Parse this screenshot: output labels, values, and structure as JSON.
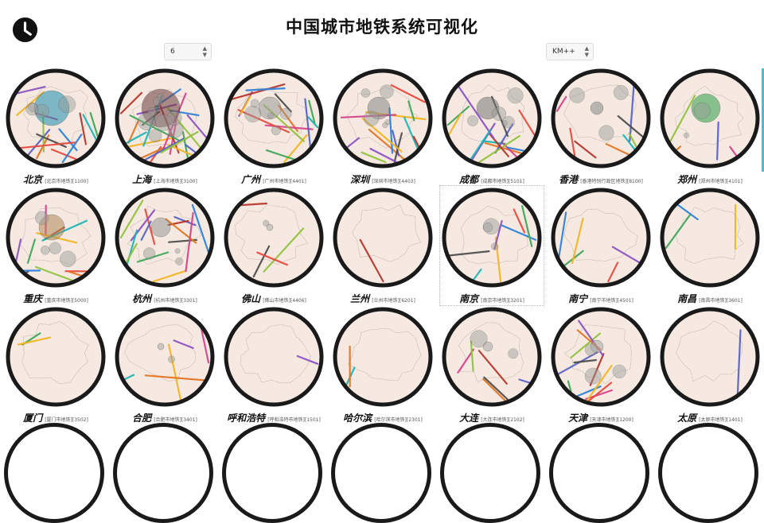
{
  "header": {
    "title": "中国城市地铁系统可视化",
    "count_select": {
      "value": "6"
    },
    "method_select": {
      "value": "KM++"
    }
  },
  "colors": {
    "ring": "#1a1a1a",
    "background": "#f5e9e1",
    "outline": "#b4aaa4",
    "accent": "#35c6d3"
  },
  "cities": [
    {
      "name": "北京",
      "info": "[北京市地铁][1100]"
    },
    {
      "name": "上海",
      "info": "[上海市地铁][3100]"
    },
    {
      "name": "广州",
      "info": "[广州市地铁][4401]"
    },
    {
      "name": "深圳",
      "info": "[深圳市地铁][4403]"
    },
    {
      "name": "成都",
      "info": "[成都市地铁][5101]"
    },
    {
      "name": "香港",
      "info": "[香港特别行政区地铁][8100]"
    },
    {
      "name": "郑州",
      "info": "[郑州市地铁][4101]"
    },
    {
      "name": "重庆",
      "info": "[重庆市地铁][5000]"
    },
    {
      "name": "杭州",
      "info": "[杭州市地铁][3301]"
    },
    {
      "name": "佛山",
      "info": "[佛山市地铁][4406]"
    },
    {
      "name": "兰州",
      "info": "[兰州市地铁][6201]"
    },
    {
      "name": "南京",
      "info": "[南京市地铁][3201]"
    },
    {
      "name": "南宁",
      "info": "[南宁市地铁][4501]"
    },
    {
      "name": "南昌",
      "info": "[南昌市地铁][3601]"
    },
    {
      "name": "厦门",
      "info": "[厦门市地铁][3502]"
    },
    {
      "name": "合肥",
      "info": "[合肥市地铁][3401]"
    },
    {
      "name": "呼和浩特",
      "info": "[呼和浩特市地铁][1501]"
    },
    {
      "name": "哈尔滨",
      "info": "[哈尔滨市地铁][2301]"
    },
    {
      "name": "大连",
      "info": "[大连市地铁][2102]"
    },
    {
      "name": "天津",
      "info": "[天津市地铁][1200]"
    },
    {
      "name": "太原",
      "info": "[太原市地铁][1401]"
    }
  ]
}
